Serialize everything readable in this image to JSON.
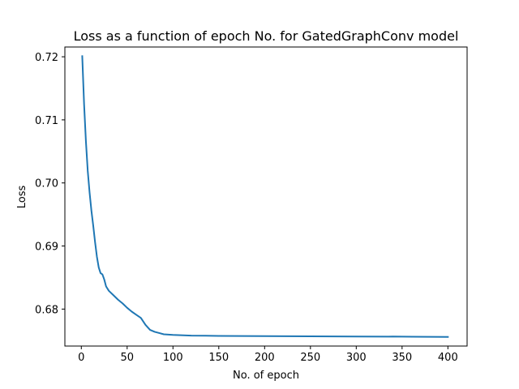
{
  "chart_data": {
    "type": "line",
    "title": "Loss as a function of epoch No. for GatedGraphConv model",
    "xlabel": "No. of epoch",
    "ylabel": "Loss",
    "xlim": [
      -17.95,
      420.95
    ],
    "ylim": [
      0.67414,
      0.72155
    ],
    "xticks": [
      0,
      50,
      100,
      150,
      200,
      250,
      300,
      350,
      400
    ],
    "xtick_labels": [
      "0",
      "50",
      "100",
      "150",
      "200",
      "250",
      "300",
      "350",
      "400"
    ],
    "yticks": [
      0.68,
      0.69,
      0.7,
      0.71,
      0.72
    ],
    "ytick_labels": [
      "0.68",
      "0.69",
      "0.70",
      "0.71",
      "0.72"
    ],
    "grid": false,
    "line_color": "#1f77b4",
    "series": [
      {
        "x": [
          1,
          3,
          5,
          7,
          9,
          11,
          13,
          15,
          17,
          19,
          21,
          23,
          25,
          27,
          30,
          35,
          40,
          45,
          50,
          55,
          60,
          65,
          70,
          75,
          80,
          85,
          90,
          100,
          120,
          150,
          200,
          250,
          300,
          335,
          340,
          350,
          380,
          400
        ],
        "y": [
          0.7201,
          0.7125,
          0.7066,
          0.7019,
          0.6985,
          0.6956,
          0.6932,
          0.6906,
          0.6883,
          0.6866,
          0.6857,
          0.6855,
          0.6847,
          0.6836,
          0.6829,
          0.6822,
          0.6815,
          0.6809,
          0.6802,
          0.6796,
          0.6791,
          0.6786,
          0.6775,
          0.6767,
          0.6764,
          0.6762,
          0.676,
          0.6759,
          0.6758,
          0.67575,
          0.67572,
          0.67568,
          0.67565,
          0.67564,
          0.67565,
          0.67563,
          0.6756,
          0.67558
        ]
      }
    ]
  }
}
